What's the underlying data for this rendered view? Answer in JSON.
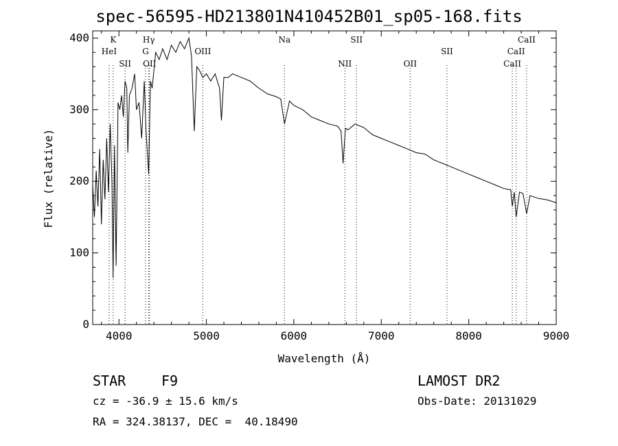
{
  "title": "spec-56595-HD213801N410452B01_sp05-168.fits",
  "info": {
    "object_class": "STAR",
    "subclass": "F9",
    "survey": "LAMOST DR2",
    "cz": "cz = -36.9 ± 15.6 km/s",
    "obs_date": "Obs-Date: 20131029",
    "coords": "RA = 324.38137, DEC =  40.18490"
  },
  "chart_data": {
    "type": "line",
    "title": "spec-56595-HD213801N410452B01_sp05-168.fits",
    "xlabel": "Wavelength (Å)",
    "ylabel": "Flux (relative)",
    "xlim": [
      3700,
      9000
    ],
    "ylim": [
      0,
      410
    ],
    "xticks": [
      4000,
      5000,
      6000,
      7000,
      8000,
      9000
    ],
    "yticks": [
      0,
      100,
      200,
      300,
      400
    ],
    "grid": false,
    "series": [
      {
        "x": [
          3700,
          3720,
          3740,
          3760,
          3780,
          3800,
          3820,
          3840,
          3860,
          3880,
          3900,
          3920,
          3933,
          3950,
          3968,
          3990,
          4010,
          4030,
          4050,
          4070,
          4090,
          4101,
          4120,
          4150,
          4180,
          4200,
          4230,
          4260,
          4290,
          4310,
          4340,
          4360,
          4380,
          4420,
          4460,
          4500,
          4550,
          4600,
          4650,
          4700,
          4750,
          4800,
          4830,
          4861,
          4890,
          4920,
          4960,
          5000,
          5050,
          5100,
          5150,
          5172,
          5200,
          5250,
          5300,
          5400,
          5500,
          5600,
          5700,
          5800,
          5850,
          5893,
          5950,
          6000,
          6100,
          6200,
          6300,
          6400,
          6500,
          6540,
          6563,
          6590,
          6620,
          6700,
          6800,
          6900,
          7000,
          7100,
          7200,
          7300,
          7400,
          7500,
          7600,
          7700,
          7800,
          7900,
          8000,
          8100,
          8200,
          8300,
          8400,
          8480,
          8498,
          8520,
          8542,
          8580,
          8620,
          8662,
          8700,
          8750,
          8800,
          8850,
          8900,
          8950,
          9000
        ],
        "y": [
          195,
          150,
          215,
          165,
          245,
          140,
          230,
          175,
          260,
          185,
          280,
          200,
          65,
          250,
          82,
          310,
          300,
          320,
          290,
          340,
          330,
          240,
          320,
          330,
          350,
          300,
          310,
          260,
          340,
          270,
          210,
          340,
          330,
          380,
          370,
          385,
          370,
          390,
          380,
          395,
          385,
          400,
          375,
          270,
          360,
          355,
          345,
          350,
          340,
          350,
          330,
          285,
          345,
          345,
          350,
          345,
          340,
          330,
          322,
          318,
          315,
          280,
          312,
          306,
          300,
          290,
          285,
          280,
          277,
          270,
          225,
          274,
          272,
          280,
          275,
          265,
          260,
          255,
          250,
          245,
          240,
          238,
          230,
          225,
          220,
          215,
          210,
          205,
          200,
          195,
          190,
          188,
          165,
          185,
          150,
          185,
          183,
          155,
          180,
          178,
          176,
          175,
          174,
          172,
          170
        ]
      }
    ],
    "lines": [
      {
        "label": "K",
        "x": 3934,
        "row": 0
      },
      {
        "label": "HeI",
        "x": 3888,
        "row": 1
      },
      {
        "label": "SII",
        "x": 4070,
        "row": 2
      },
      {
        "label": "Hγ",
        "x": 4341,
        "row": 0
      },
      {
        "label": "G",
        "x": 4305,
        "row": 1
      },
      {
        "label": "OII",
        "x": 4350,
        "row": 2
      },
      {
        "label": "OIII",
        "x": 4959,
        "row": 1
      },
      {
        "label": "Na",
        "x": 5893,
        "row": 0
      },
      {
        "label": "SII",
        "x": 6717,
        "row": 0
      },
      {
        "label": "NII",
        "x": 6584,
        "row": 2
      },
      {
        "label": "OII",
        "x": 7330,
        "row": 2
      },
      {
        "label": "SII",
        "x": 7751,
        "row": 1
      },
      {
        "label": "CaII",
        "x": 8662,
        "row": 0
      },
      {
        "label": "CaII",
        "x": 8542,
        "row": 1
      },
      {
        "label": "CaII",
        "x": 8498,
        "row": 2
      }
    ]
  }
}
